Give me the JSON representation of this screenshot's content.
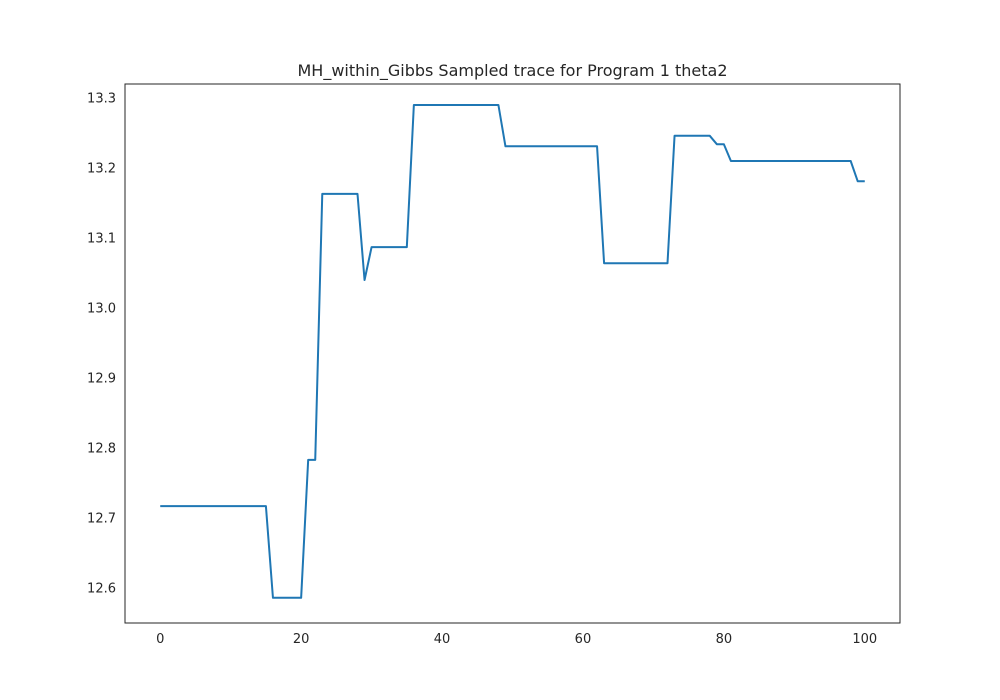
{
  "chart_data": {
    "type": "line",
    "title": "MH_within_Gibbs Sampled trace for Program 1 theta2",
    "xlabel": "",
    "ylabel": "",
    "xlim": [
      -5,
      105
    ],
    "ylim": [
      12.55,
      13.32
    ],
    "grid": false,
    "x_ticks": [
      0,
      20,
      40,
      60,
      80,
      100
    ],
    "x_tick_labels": [
      "0",
      "20",
      "40",
      "60",
      "80",
      "100"
    ],
    "y_ticks": [
      12.6,
      12.7,
      12.8,
      12.9,
      13.0,
      13.1,
      13.2,
      13.3
    ],
    "y_tick_labels": [
      "12.6",
      "12.7",
      "12.8",
      "12.9",
      "13.0",
      "13.1",
      "13.2",
      "13.3"
    ],
    "series": [
      {
        "color": "#1f77b4",
        "x": [
          0,
          1,
          2,
          3,
          4,
          5,
          6,
          7,
          8,
          9,
          10,
          11,
          12,
          13,
          14,
          15,
          16,
          17,
          18,
          19,
          20,
          21,
          22,
          23,
          24,
          25,
          26,
          27,
          28,
          29,
          30,
          31,
          32,
          33,
          34,
          35,
          36,
          37,
          38,
          39,
          40,
          41,
          42,
          43,
          44,
          45,
          46,
          47,
          48,
          49,
          50,
          51,
          52,
          53,
          54,
          55,
          56,
          57,
          58,
          59,
          60,
          61,
          62,
          63,
          64,
          65,
          66,
          67,
          68,
          69,
          70,
          71,
          72,
          73,
          74,
          75,
          76,
          77,
          78,
          79,
          80,
          81,
          82,
          83,
          84,
          85,
          86,
          87,
          88,
          89,
          90,
          91,
          92,
          93,
          94,
          95,
          96,
          97,
          98,
          99,
          100
        ],
        "y": [
          12.717,
          12.717,
          12.717,
          12.717,
          12.717,
          12.717,
          12.717,
          12.717,
          12.717,
          12.717,
          12.717,
          12.717,
          12.717,
          12.717,
          12.717,
          12.717,
          12.586,
          12.586,
          12.586,
          12.586,
          12.586,
          12.783,
          12.783,
          13.163,
          13.163,
          13.163,
          13.163,
          13.163,
          13.163,
          13.04,
          13.087,
          13.087,
          13.087,
          13.087,
          13.087,
          13.087,
          13.29,
          13.29,
          13.29,
          13.29,
          13.29,
          13.29,
          13.29,
          13.29,
          13.29,
          13.29,
          13.29,
          13.29,
          13.29,
          13.231,
          13.231,
          13.231,
          13.231,
          13.231,
          13.231,
          13.231,
          13.231,
          13.231,
          13.231,
          13.231,
          13.231,
          13.231,
          13.231,
          13.064,
          13.064,
          13.064,
          13.064,
          13.064,
          13.064,
          13.064,
          13.064,
          13.064,
          13.064,
          13.246,
          13.246,
          13.246,
          13.246,
          13.246,
          13.246,
          13.234,
          13.234,
          13.21,
          13.21,
          13.21,
          13.21,
          13.21,
          13.21,
          13.21,
          13.21,
          13.21,
          13.21,
          13.21,
          13.21,
          13.21,
          13.21,
          13.21,
          13.21,
          13.21,
          13.21,
          13.181,
          13.181
        ]
      }
    ]
  }
}
